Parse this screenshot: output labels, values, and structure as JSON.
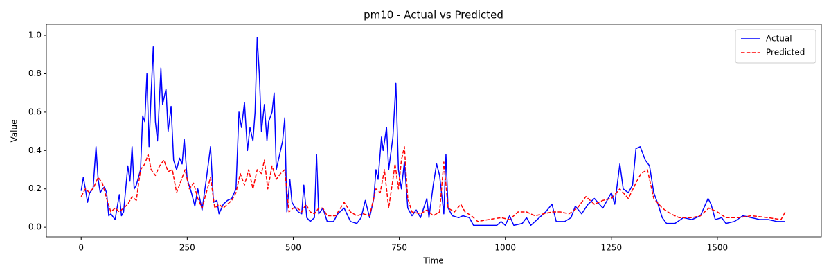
{
  "chart_data": {
    "type": "line",
    "title": "pm10 - Actual vs Predicted",
    "xlabel": "Time",
    "ylabel": "Value",
    "xlim": [
      -82,
      1745
    ],
    "ylim": [
      -0.05,
      1.058
    ],
    "xticks": [
      0,
      250,
      500,
      750,
      1000,
      1250,
      1500
    ],
    "yticks": [
      {
        "value": 0,
        "label": "0.0"
      },
      0.2,
      0.4,
      0.6,
      0.8,
      {
        "value": 1,
        "label": "1.0"
      }
    ],
    "legend": "upper right",
    "grid": false,
    "series": [
      {
        "name": "Actual",
        "color": "#0000ff",
        "dash": "solid",
        "x": [
          0,
          5,
          10,
          15,
          20,
          28,
          35,
          40,
          45,
          50,
          55,
          60,
          65,
          70,
          80,
          90,
          95,
          100,
          105,
          110,
          115,
          120,
          125,
          130,
          140,
          145,
          150,
          155,
          160,
          165,
          170,
          175,
          180,
          188,
          192,
          200,
          205,
          212,
          218,
          225,
          232,
          238,
          243,
          250,
          260,
          268,
          275,
          285,
          295,
          305,
          312,
          320,
          325,
          335,
          345,
          355,
          365,
          372,
          378,
          385,
          392,
          398,
          405,
          410,
          415,
          420,
          425,
          432,
          438,
          442,
          450,
          455,
          460,
          465,
          475,
          480,
          485,
          492,
          497,
          505,
          512,
          520,
          525,
          532,
          540,
          550,
          555,
          560,
          570,
          580,
          595,
          605,
          620,
          635,
          650,
          660,
          670,
          680,
          690,
          695,
          700,
          708,
          712,
          720,
          725,
          735,
          742,
          748,
          755,
          762,
          770,
          780,
          790,
          800,
          815,
          820,
          830,
          838,
          845,
          855,
          860,
          865,
          875,
          890,
          900,
          915,
          925,
          960,
          980,
          990,
          1000,
          1010,
          1020,
          1040,
          1050,
          1060,
          1080,
          1095,
          1110,
          1120,
          1140,
          1155,
          1165,
          1180,
          1195,
          1210,
          1230,
          1250,
          1258,
          1270,
          1278,
          1290,
          1300,
          1308,
          1318,
          1330,
          1340,
          1350,
          1360,
          1370,
          1380,
          1400,
          1420,
          1440,
          1460,
          1478,
          1485,
          1495,
          1510,
          1520,
          1540,
          1560,
          1580,
          1600,
          1620,
          1640,
          1650,
          1660
        ],
        "values": [
          0.19,
          0.26,
          0.2,
          0.13,
          0.18,
          0.2,
          0.42,
          0.25,
          0.18,
          0.2,
          0.21,
          0.18,
          0.06,
          0.07,
          0.04,
          0.17,
          0.06,
          0.08,
          0.2,
          0.32,
          0.24,
          0.42,
          0.2,
          0.22,
          0.3,
          0.58,
          0.55,
          0.8,
          0.42,
          0.7,
          0.94,
          0.55,
          0.45,
          0.83,
          0.64,
          0.72,
          0.5,
          0.63,
          0.35,
          0.3,
          0.36,
          0.33,
          0.46,
          0.25,
          0.18,
          0.11,
          0.2,
          0.09,
          0.25,
          0.42,
          0.13,
          0.14,
          0.07,
          0.12,
          0.14,
          0.15,
          0.2,
          0.6,
          0.52,
          0.65,
          0.4,
          0.52,
          0.45,
          0.6,
          0.99,
          0.8,
          0.5,
          0.64,
          0.45,
          0.55,
          0.6,
          0.7,
          0.3,
          0.35,
          0.45,
          0.57,
          0.08,
          0.25,
          0.13,
          0.1,
          0.08,
          0.07,
          0.22,
          0.05,
          0.03,
          0.05,
          0.38,
          0.07,
          0.1,
          0.03,
          0.03,
          0.07,
          0.1,
          0.03,
          0.02,
          0.05,
          0.14,
          0.05,
          0.15,
          0.3,
          0.25,
          0.47,
          0.4,
          0.52,
          0.3,
          0.47,
          0.75,
          0.3,
          0.2,
          0.34,
          0.1,
          0.06,
          0.09,
          0.05,
          0.15,
          0.05,
          0.22,
          0.33,
          0.27,
          0.07,
          0.38,
          0.1,
          0.06,
          0.05,
          0.06,
          0.05,
          0.01,
          0.01,
          0.01,
          0.03,
          0.01,
          0.06,
          0.01,
          0.02,
          0.05,
          0.01,
          0.05,
          0.08,
          0.12,
          0.03,
          0.03,
          0.05,
          0.11,
          0.07,
          0.12,
          0.15,
          0.1,
          0.18,
          0.12,
          0.33,
          0.2,
          0.18,
          0.22,
          0.41,
          0.42,
          0.35,
          0.32,
          0.18,
          0.12,
          0.05,
          0.02,
          0.02,
          0.05,
          0.04,
          0.06,
          0.15,
          0.12,
          0.04,
          0.05,
          0.02,
          0.03,
          0.06,
          0.05,
          0.04,
          0.04,
          0.03,
          0.03,
          0.03
        ]
      },
      {
        "name": "Predicted",
        "color": "#ff0000",
        "dash": "dashed",
        "x": [
          0,
          10,
          20,
          30,
          40,
          50,
          60,
          70,
          80,
          90,
          100,
          110,
          120,
          130,
          140,
          150,
          158,
          165,
          175,
          185,
          195,
          205,
          215,
          225,
          235,
          245,
          255,
          265,
          275,
          285,
          295,
          305,
          315,
          325,
          335,
          345,
          355,
          365,
          375,
          385,
          395,
          405,
          415,
          425,
          432,
          440,
          450,
          460,
          470,
          480,
          490,
          500,
          510,
          520,
          530,
          540,
          550,
          560,
          570,
          580,
          600,
          620,
          635,
          650,
          665,
          680,
          695,
          705,
          715,
          725,
          735,
          740,
          748,
          755,
          762,
          770,
          780,
          800,
          815,
          830,
          845,
          855,
          865,
          880,
          895,
          905,
          920,
          935,
          960,
          990,
          1010,
          1030,
          1050,
          1070,
          1090,
          1110,
          1130,
          1150,
          1170,
          1190,
          1210,
          1230,
          1250,
          1270,
          1290,
          1310,
          1320,
          1335,
          1350,
          1370,
          1390,
          1410,
          1440,
          1460,
          1480,
          1500,
          1520,
          1550,
          1580,
          1620,
          1650,
          1660
        ],
        "values": [
          0.16,
          0.2,
          0.18,
          0.21,
          0.26,
          0.23,
          0.15,
          0.08,
          0.1,
          0.08,
          0.1,
          0.12,
          0.16,
          0.14,
          0.3,
          0.33,
          0.38,
          0.3,
          0.27,
          0.32,
          0.35,
          0.29,
          0.3,
          0.18,
          0.24,
          0.3,
          0.2,
          0.23,
          0.15,
          0.1,
          0.18,
          0.26,
          0.1,
          0.12,
          0.1,
          0.12,
          0.14,
          0.18,
          0.28,
          0.22,
          0.3,
          0.2,
          0.3,
          0.28,
          0.35,
          0.2,
          0.32,
          0.25,
          0.28,
          0.3,
          0.08,
          0.1,
          0.1,
          0.08,
          0.12,
          0.08,
          0.07,
          0.1,
          0.1,
          0.06,
          0.06,
          0.13,
          0.08,
          0.06,
          0.07,
          0.06,
          0.2,
          0.18,
          0.3,
          0.1,
          0.25,
          0.33,
          0.2,
          0.35,
          0.42,
          0.15,
          0.08,
          0.07,
          0.09,
          0.06,
          0.08,
          0.34,
          0.1,
          0.08,
          0.12,
          0.08,
          0.06,
          0.03,
          0.04,
          0.05,
          0.04,
          0.08,
          0.08,
          0.06,
          0.07,
          0.08,
          0.08,
          0.07,
          0.1,
          0.16,
          0.12,
          0.14,
          0.15,
          0.2,
          0.15,
          0.24,
          0.28,
          0.3,
          0.15,
          0.1,
          0.07,
          0.05,
          0.05,
          0.06,
          0.1,
          0.08,
          0.05,
          0.05,
          0.06,
          0.05,
          0.04,
          0.08
        ]
      }
    ]
  }
}
